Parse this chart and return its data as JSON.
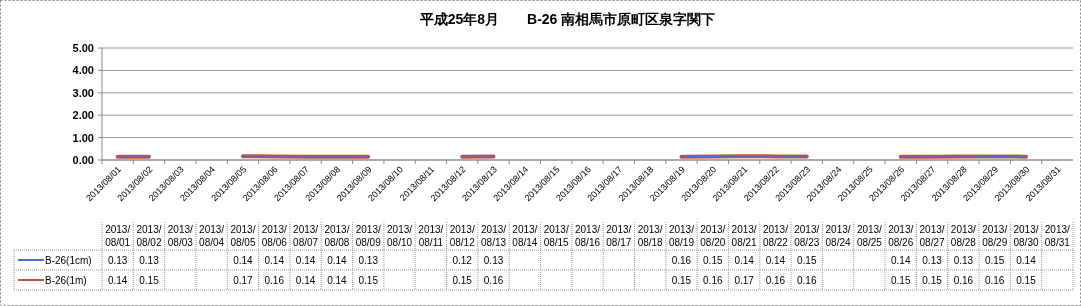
{
  "chart_data": {
    "type": "line",
    "title": "平成25年8月　　B-26 南相馬市原町区泉字関下",
    "categories": [
      "2013/08/01",
      "2013/08/02",
      "2013/08/03",
      "2013/08/04",
      "2013/08/05",
      "2013/08/06",
      "2013/08/07",
      "2013/08/08",
      "2013/08/09",
      "2013/08/10",
      "2013/08/11",
      "2013/08/12",
      "2013/08/13",
      "2013/08/14",
      "2013/08/15",
      "2013/08/16",
      "2013/08/17",
      "2013/08/18",
      "2013/08/19",
      "2013/08/20",
      "2013/08/21",
      "2013/08/22",
      "2013/08/23",
      "2013/08/24",
      "2013/08/25",
      "2013/08/26",
      "2013/08/27",
      "2013/08/28",
      "2013/08/29",
      "2013/08/30",
      "2013/08/31"
    ],
    "series": [
      {
        "name": "B-26(1cm)",
        "color": "#4472c4",
        "values": [
          0.13,
          0.13,
          null,
          null,
          0.14,
          0.14,
          0.14,
          0.14,
          0.13,
          null,
          null,
          0.12,
          0.13,
          null,
          null,
          null,
          null,
          null,
          0.16,
          0.15,
          0.14,
          0.14,
          0.15,
          null,
          null,
          0.14,
          0.13,
          0.13,
          0.15,
          0.14,
          null
        ]
      },
      {
        "name": "B-26(1m)",
        "color": "#c0504d",
        "values": [
          0.14,
          0.15,
          null,
          null,
          0.17,
          0.16,
          0.14,
          0.14,
          0.15,
          null,
          null,
          0.15,
          0.16,
          null,
          null,
          null,
          null,
          null,
          0.15,
          0.16,
          0.17,
          0.16,
          0.16,
          null,
          null,
          0.15,
          0.15,
          0.16,
          0.16,
          0.15,
          null
        ]
      }
    ],
    "ylim": [
      0,
      5
    ],
    "yticks": [
      {
        "value": 0,
        "label": "0.00"
      },
      {
        "value": 1,
        "label": "1.00"
      },
      {
        "value": 2,
        "label": "2.00"
      },
      {
        "value": 3,
        "label": "3.00"
      },
      {
        "value": 4,
        "label": "4.00"
      },
      {
        "value": 5,
        "label": "5.00"
      }
    ],
    "grid": "y",
    "legend": "bottom",
    "data_labels": true,
    "marker": "none",
    "line_style": "solid"
  }
}
